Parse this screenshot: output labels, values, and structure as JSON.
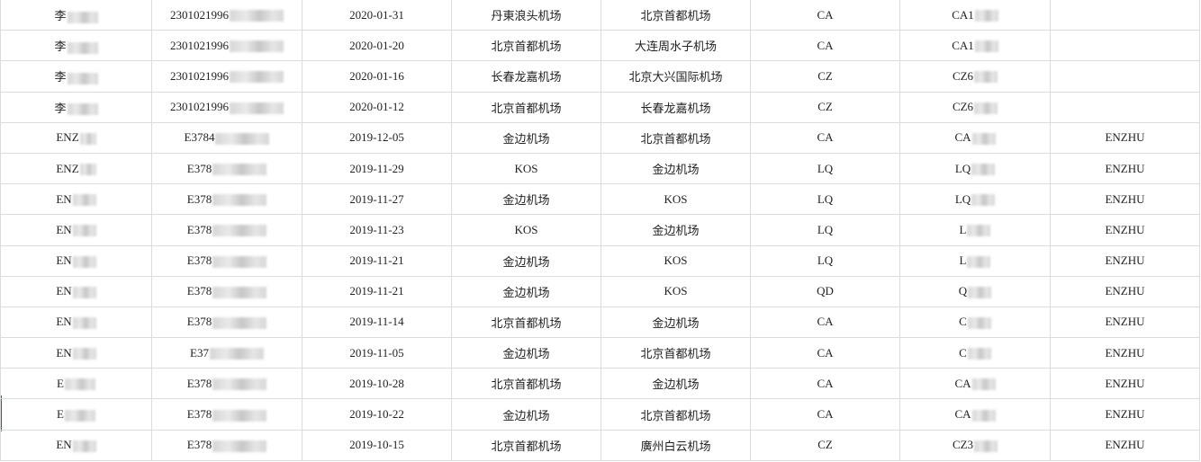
{
  "sheet": {
    "rows": [
      {
        "name": "李",
        "id": "2301021996",
        "date": "2020-01-31",
        "from": "丹東浪头机场",
        "to": "北京首都机场",
        "airline": "CA",
        "flight": "CA1",
        "pax": ""
      },
      {
        "name": "李",
        "id": "2301021996",
        "date": "2020-01-20",
        "from": "北京首都机场",
        "to": "大连周水子机场",
        "airline": "CA",
        "flight": "CA1",
        "pax": ""
      },
      {
        "name": "李",
        "id": "2301021996",
        "date": "2020-01-16",
        "from": "长春龙嘉机场",
        "to": "北京大兴国际机场",
        "airline": "CZ",
        "flight": "CZ6",
        "pax": ""
      },
      {
        "name": "李",
        "id": "2301021996",
        "date": "2020-01-12",
        "from": "北京首都机场",
        "to": "长春龙嘉机场",
        "airline": "CZ",
        "flight": "CZ6",
        "pax": ""
      },
      {
        "name": "ENZ",
        "id": "E3784",
        "date": "2019-12-05",
        "from": "金边机场",
        "to": "北京首都机场",
        "airline": "CA",
        "flight": "CA",
        "pax": "ENZHU"
      },
      {
        "name": "ENZ",
        "id": "E378",
        "date": "2019-11-29",
        "from": "KOS",
        "to": "金边机场",
        "airline": "LQ",
        "flight": "LQ",
        "pax": "ENZHU"
      },
      {
        "name": "EN",
        "id": "E378",
        "date": "2019-11-27",
        "from": "金边机场",
        "to": "KOS",
        "airline": "LQ",
        "flight": "LQ",
        "pax": "ENZHU"
      },
      {
        "name": "EN",
        "id": "E378",
        "date": "2019-11-23",
        "from": "KOS",
        "to": "金边机场",
        "airline": "LQ",
        "flight": "L",
        "pax": "ENZHU"
      },
      {
        "name": "EN",
        "id": "E378",
        "date": "2019-11-21",
        "from": "金边机场",
        "to": "KOS",
        "airline": "LQ",
        "flight": "L",
        "pax": "ENZHU"
      },
      {
        "name": "EN",
        "id": "E378",
        "date": "2019-11-21",
        "from": "金边机场",
        "to": "KOS",
        "airline": "QD",
        "flight": "Q",
        "pax": "ENZHU"
      },
      {
        "name": "EN",
        "id": "E378",
        "date": "2019-11-14",
        "from": "北京首都机场",
        "to": "金边机场",
        "airline": "CA",
        "flight": "C",
        "pax": "ENZHU"
      },
      {
        "name": "EN",
        "id": "E37",
        "date": "2019-11-05",
        "from": "金边机场",
        "to": "北京首都机场",
        "airline": "CA",
        "flight": "C",
        "pax": "ENZHU"
      },
      {
        "name": "E",
        "id": "E378",
        "date": "2019-10-28",
        "from": "北京首都机场",
        "to": "金边机场",
        "airline": "CA",
        "flight": "CA",
        "pax": "ENZHU"
      },
      {
        "name": "E",
        "id": "E378",
        "date": "2019-10-22",
        "from": "金边机场",
        "to": "北京首都机场",
        "airline": "CA",
        "flight": "CA",
        "pax": "ENZHU"
      },
      {
        "name": "EN",
        "id": "E378",
        "date": "2019-10-15",
        "from": "北京首都机场",
        "to": "廣州白云机场",
        "airline": "CZ",
        "flight": "CZ3",
        "pax": "ENZHU"
      }
    ]
  }
}
